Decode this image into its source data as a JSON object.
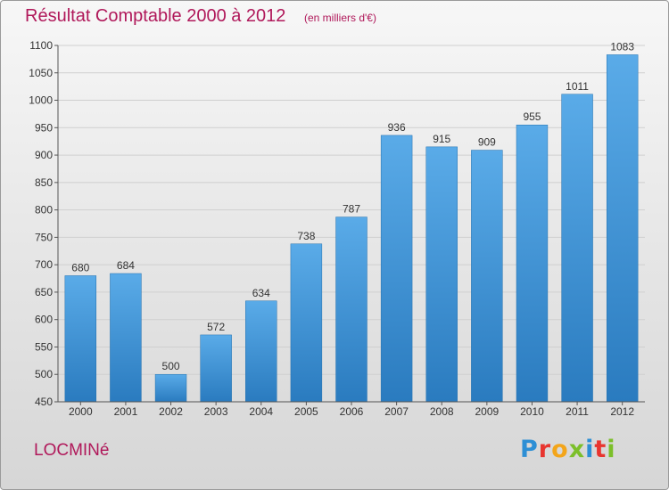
{
  "chart_data": {
    "type": "bar",
    "title": "Résultat Comptable 2000 à 2012",
    "subtitle": "(en milliers d'€)",
    "xlabel": "",
    "ylabel": "",
    "categories": [
      "2000",
      "2001",
      "2002",
      "2003",
      "2004",
      "2005",
      "2006",
      "2007",
      "2008",
      "2009",
      "2010",
      "2011",
      "2012"
    ],
    "values": [
      680,
      684,
      500,
      572,
      634,
      738,
      787,
      936,
      915,
      909,
      955,
      1011,
      1083
    ],
    "ylim": [
      450,
      1100
    ],
    "yticks": [
      450,
      500,
      550,
      600,
      650,
      700,
      750,
      800,
      850,
      900,
      950,
      1000,
      1050,
      1100
    ],
    "grid": true,
    "data_labels": true,
    "bar_color_top": "#5aabe8",
    "bar_color_bottom": "#2a7bbf"
  },
  "footer": {
    "place": "LOCMINé",
    "brand_letters": [
      {
        "char": "P",
        "color": "#2d8fd5"
      },
      {
        "char": "r",
        "color": "#e8352f"
      },
      {
        "char": "o",
        "color": "#f3a51a"
      },
      {
        "char": "x",
        "color": "#7cbf2a"
      },
      {
        "char": "i",
        "color": "#2d8fd5"
      },
      {
        "char": "t",
        "color": "#e8352f"
      },
      {
        "char": "i",
        "color": "#7cbf2a"
      }
    ]
  },
  "colors": {
    "title": "#b0185a",
    "grid": "#cfcfcf",
    "axis_text": "#333333"
  }
}
